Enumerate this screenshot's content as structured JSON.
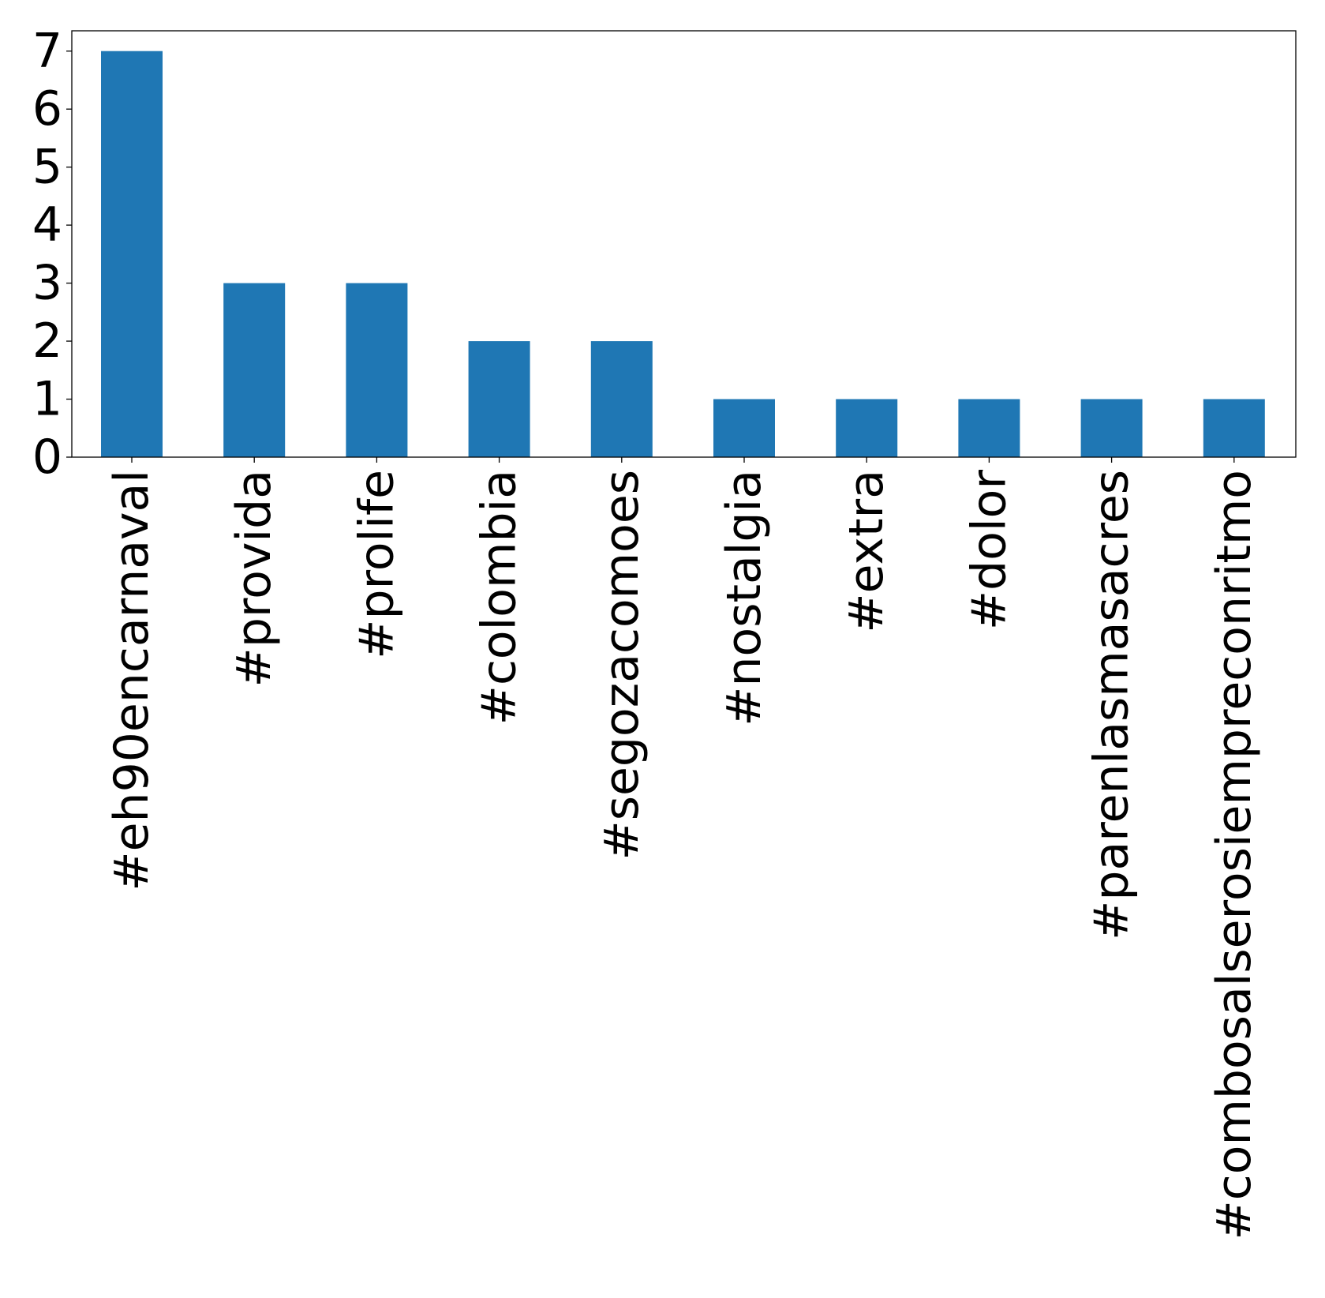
{
  "chart_data": {
    "type": "bar",
    "categories": [
      "#eh90encarnaval",
      "#provida",
      "#prolife",
      "#colombia",
      "#segozacomoes",
      "#nostalgia",
      "#extra",
      "#dolor",
      "#parenlasmasacres",
      "#combosalserosiempreconritmo"
    ],
    "values": [
      7,
      3,
      3,
      2,
      2,
      1,
      1,
      1,
      1,
      1
    ],
    "yticks": [
      "0",
      "1",
      "2",
      "3",
      "4",
      "5",
      "6",
      "7"
    ],
    "ylim": [
      0,
      7.35
    ],
    "bar_color": "#1f77b4",
    "grid": false,
    "legend": "none"
  }
}
